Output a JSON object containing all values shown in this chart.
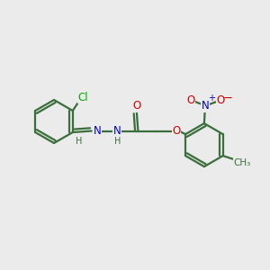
{
  "background_color": "#ebebeb",
  "bond_color": "#3a6e3a",
  "bond_width": 1.6,
  "atom_colors": {
    "C": "#3a6e3a",
    "H": "#3a6e3a",
    "N": "#0000cc",
    "O": "#cc0000",
    "Cl": "#00aa00"
  },
  "fs": 8.5,
  "fs2": 7.0,
  "xlim": [
    0,
    10
  ],
  "ylim": [
    0,
    10
  ]
}
